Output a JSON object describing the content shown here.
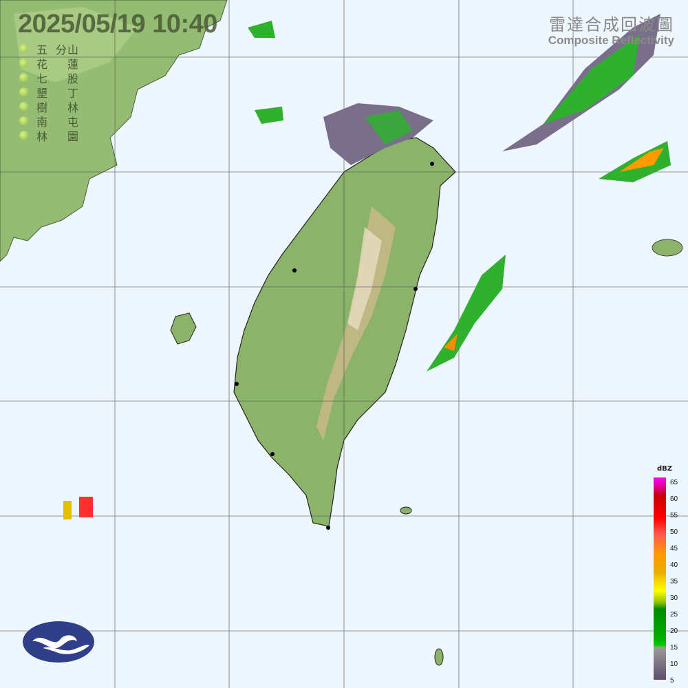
{
  "header": {
    "timestamp": "2025/05/19  10:40",
    "product_title_zh": "雷達合成回波圖",
    "product_title_en": "Composite Reflectivity"
  },
  "stations": [
    {
      "c1": "五",
      "c2": "分",
      "c3": "山"
    },
    {
      "c1": "花",
      "c2": "",
      "c3": "蓮"
    },
    {
      "c1": "七",
      "c2": "",
      "c3": "股"
    },
    {
      "c1": "墾",
      "c2": "",
      "c3": "丁"
    },
    {
      "c1": "樹",
      "c2": "",
      "c3": "林"
    },
    {
      "c1": "南",
      "c2": "",
      "c3": "屯"
    },
    {
      "c1": "林",
      "c2": "",
      "c3": "園"
    }
  ],
  "legend": {
    "unit": "dBZ",
    "ticks": [
      "65",
      "60",
      "55",
      "50",
      "45",
      "40",
      "35",
      "30",
      "25",
      "20",
      "15",
      "10",
      "5"
    ]
  },
  "colors": {
    "ocean": "#eef6fe",
    "land": "#8fb870",
    "echo_low": "#7a6f8a",
    "echo_mid": "#2fb02f",
    "echo_high": "#ff8c00"
  }
}
